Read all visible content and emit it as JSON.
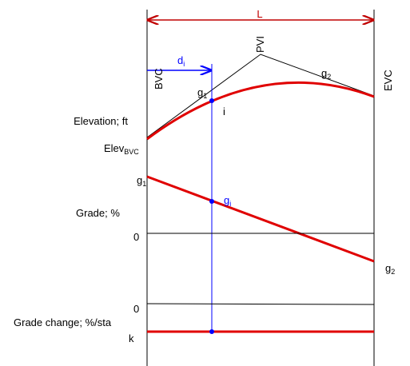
{
  "labels": {
    "span": "L",
    "pvi": "PVI",
    "g2_top": {
      "base": "g",
      "sub": "2"
    },
    "bvc": "BVC",
    "evc": "EVC",
    "di": {
      "base": "d",
      "sub": "i"
    },
    "g1_top": {
      "base": "g",
      "sub": "1"
    },
    "point_i": "i",
    "elevation": "Elevation; ft",
    "elev_bvc": {
      "base": "Elev",
      "sub": "BVC"
    },
    "g1_left": {
      "base": "g",
      "sub": "1"
    },
    "gi": {
      "base": "g",
      "sub": "i"
    },
    "grade": "Grade; %",
    "zero_grade": "0",
    "g2_right": {
      "base": "g",
      "sub": "2"
    },
    "zero_change": "0",
    "grade_change": "Grade change; %/sta",
    "k": "k"
  }
}
